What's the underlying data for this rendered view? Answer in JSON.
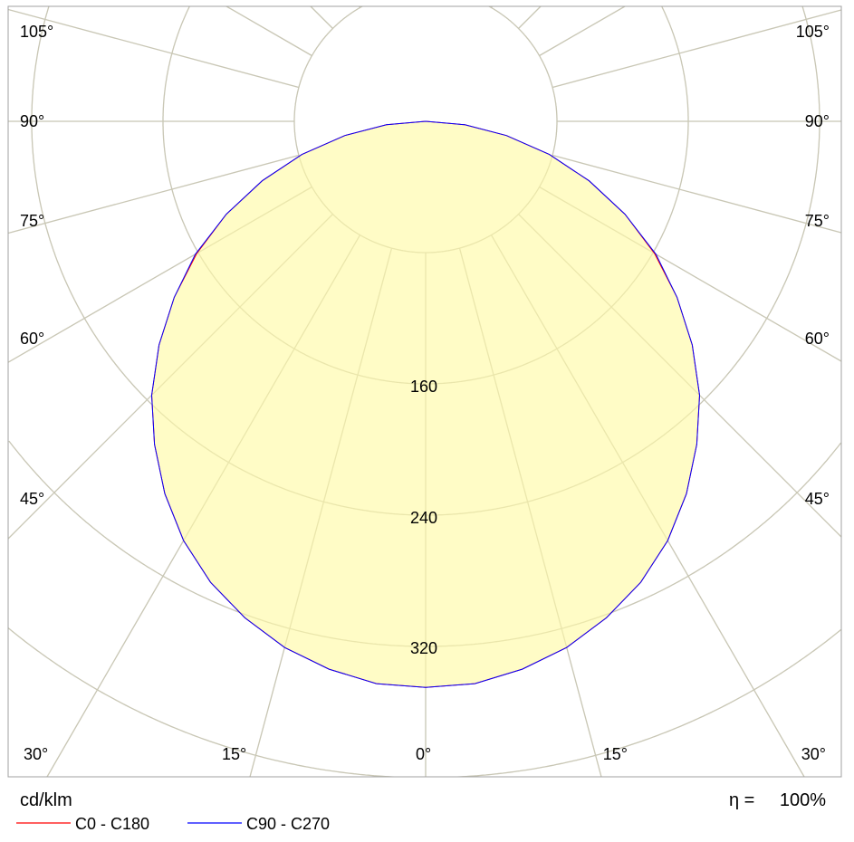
{
  "chart_data": {
    "type": "polar-line",
    "unit_label": "cd/klm",
    "efficiency_label": "η =",
    "efficiency_value": "100%",
    "radial_ticks": [
      80,
      160,
      240,
      320,
      400
    ],
    "radial_tick_labels": [
      "160",
      "240",
      "320"
    ],
    "angle_labels_left": [
      "105°",
      "90°",
      "75°",
      "60°",
      "45°",
      "30°",
      "15°"
    ],
    "angle_labels_right": [
      "105°",
      "90°",
      "75°",
      "60°",
      "45°",
      "30°",
      "15°"
    ],
    "angle_label_center": "0°",
    "fill_color": "#fffcc6",
    "grid_color": "#d2d2d2",
    "angles": [
      0,
      5,
      10,
      15,
      20,
      25,
      30,
      35,
      40,
      45,
      50,
      55,
      60,
      65,
      70,
      75,
      80,
      85,
      90
    ],
    "series": [
      {
        "name": "C0 - C180",
        "color": "#ff0000",
        "values": [
          345,
          344,
          339,
          332,
          322,
          310,
          295,
          277,
          257,
          236,
          212,
          187,
          161,
          134,
          106,
          78,
          50,
          24,
          0
        ]
      },
      {
        "name": "C90 - C270",
        "color": "#0000ff",
        "values": [
          345,
          344,
          339,
          332,
          322,
          310,
          295,
          277,
          257,
          236,
          212,
          187,
          162,
          134,
          106,
          78,
          50,
          24,
          0
        ]
      }
    ]
  }
}
